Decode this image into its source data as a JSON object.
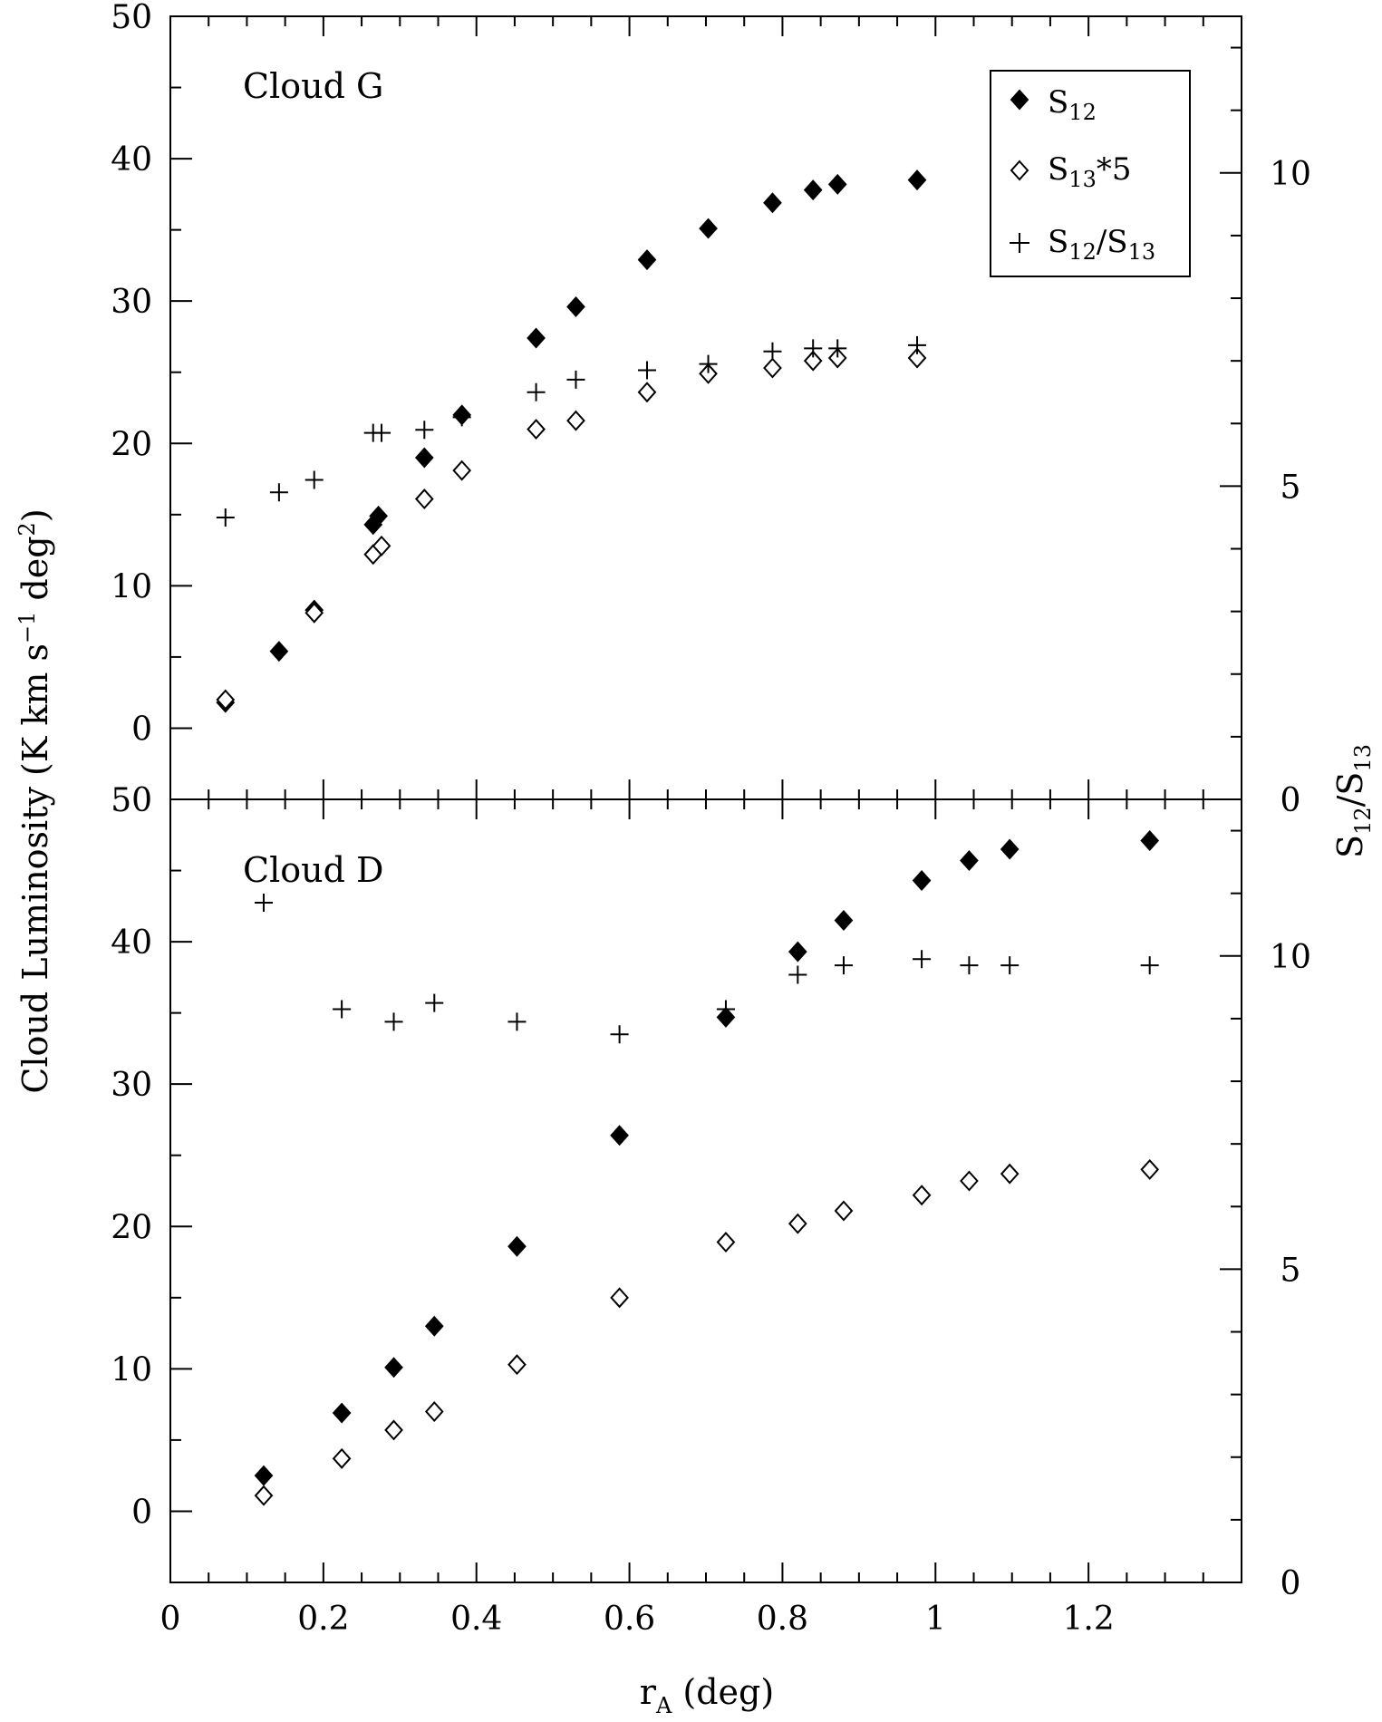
{
  "chart_data": [
    {
      "type": "scatter",
      "panel": "top",
      "title": "Cloud G",
      "xlabel": "r_A (deg)",
      "ylabel_left": "Cloud Luminosity (K km s^-1 deg^2)",
      "ylabel_right": "S12/S13",
      "xlim": [
        0,
        1.4
      ],
      "ylim_left": [
        -5,
        50
      ],
      "ylim_right": [
        0,
        12.5
      ],
      "left_ticks": [
        "0",
        "10",
        "20",
        "30",
        "40",
        "50"
      ],
      "right_ticks": [
        "0",
        "5",
        "10"
      ],
      "legend": {
        "placement": "top-right"
      },
      "series": [
        {
          "name": "S12",
          "axis": "left",
          "marker": "filled-diamond",
          "x": [
            0.072,
            0.142,
            0.188,
            0.265,
            0.272,
            0.332,
            0.381,
            0.478,
            0.53,
            0.623,
            0.703,
            0.787,
            0.84,
            0.872,
            0.976
          ],
          "y": [
            1.8,
            5.4,
            8.3,
            14.3,
            14.9,
            19.0,
            22.0,
            27.4,
            29.6,
            32.9,
            35.1,
            36.9,
            37.8,
            38.2,
            38.5
          ]
        },
        {
          "name": "S13*5",
          "axis": "left",
          "marker": "open-diamond",
          "x": [
            0.072,
            0.188,
            0.265,
            0.276,
            0.332,
            0.381,
            0.478,
            0.53,
            0.623,
            0.703,
            0.787,
            0.84,
            0.872,
            0.976
          ],
          "y": [
            2.0,
            8.1,
            12.2,
            12.8,
            16.1,
            18.1,
            21.0,
            21.6,
            23.6,
            24.9,
            25.3,
            25.8,
            26.0,
            26.0
          ]
        },
        {
          "name": "S12/S13",
          "axis": "right",
          "marker": "plus",
          "x": [
            0.072,
            0.142,
            0.188,
            0.265,
            0.276,
            0.332,
            0.381,
            0.478,
            0.53,
            0.623,
            0.703,
            0.787,
            0.84,
            0.872,
            0.976
          ],
          "y": [
            4.5,
            4.9,
            5.1,
            5.85,
            5.85,
            5.9,
            6.1,
            6.5,
            6.7,
            6.85,
            6.95,
            7.15,
            7.2,
            7.2,
            7.25
          ]
        }
      ]
    },
    {
      "type": "scatter",
      "panel": "bottom",
      "title": "Cloud D",
      "xlabel": "r_A (deg)",
      "ylabel_left": "Cloud Luminosity (K km s^-1 deg^2)",
      "ylabel_right": "S12/S13",
      "xlim": [
        0,
        1.4
      ],
      "ylim_left": [
        -5,
        50
      ],
      "ylim_right": [
        0,
        12.5
      ],
      "left_ticks": [
        "0",
        "10",
        "20",
        "30",
        "40",
        "50"
      ],
      "right_ticks": [
        "0",
        "5",
        "10"
      ],
      "x_ticks": [
        "0",
        "0.2",
        "0.4",
        "0.6",
        "0.8",
        "1",
        "1.2"
      ],
      "series": [
        {
          "name": "S12",
          "axis": "left",
          "marker": "filled-diamond",
          "x": [
            0.122,
            0.224,
            0.292,
            0.345,
            0.453,
            0.587,
            0.726,
            0.82,
            0.88,
            0.982,
            1.044,
            1.097,
            1.28
          ],
          "y": [
            2.5,
            6.9,
            10.1,
            13.0,
            18.6,
            26.4,
            34.7,
            39.3,
            41.5,
            44.3,
            45.7,
            46.5,
            47.1
          ]
        },
        {
          "name": "S13*5",
          "axis": "left",
          "marker": "open-diamond",
          "x": [
            0.122,
            0.224,
            0.292,
            0.345,
            0.453,
            0.587,
            0.726,
            0.82,
            0.88,
            0.982,
            1.044,
            1.097,
            1.28
          ],
          "y": [
            1.1,
            3.7,
            5.7,
            7.0,
            10.3,
            15.0,
            18.9,
            20.2,
            21.1,
            22.2,
            23.2,
            23.7,
            24.0
          ]
        },
        {
          "name": "S12/S13",
          "axis": "right",
          "marker": "plus",
          "x": [
            0.122,
            0.224,
            0.292,
            0.345,
            0.453,
            0.587,
            0.726,
            0.82,
            0.88,
            0.982,
            1.044,
            1.097,
            1.28
          ],
          "y": [
            10.85,
            9.15,
            8.95,
            9.25,
            8.95,
            8.75,
            9.15,
            9.7,
            9.85,
            9.95,
            9.85,
            9.85,
            9.85
          ]
        }
      ]
    }
  ],
  "labels": {
    "y_left_main": "Cloud Luminosity (K km s",
    "y_left_exp1": "−1",
    "y_left_mid": " deg",
    "y_left_exp2": "2",
    "y_left_end": ")",
    "y_right_main": "S",
    "y_right_sub1": "12",
    "y_right_slash": "/S",
    "y_right_sub2": "13",
    "x_main": "r",
    "x_sub": "A",
    "x_end": " (deg)",
    "panel_top": "Cloud G",
    "panel_bottom": "Cloud D",
    "legend_s12_main": "S",
    "legend_s12_sub": "12",
    "legend_s13_main": "S",
    "legend_s13_sub": "13",
    "legend_s13_end": "*5",
    "legend_ratio_main": "S",
    "legend_ratio_sub1": "12",
    "legend_ratio_mid": "/S",
    "legend_ratio_sub2": "13"
  }
}
